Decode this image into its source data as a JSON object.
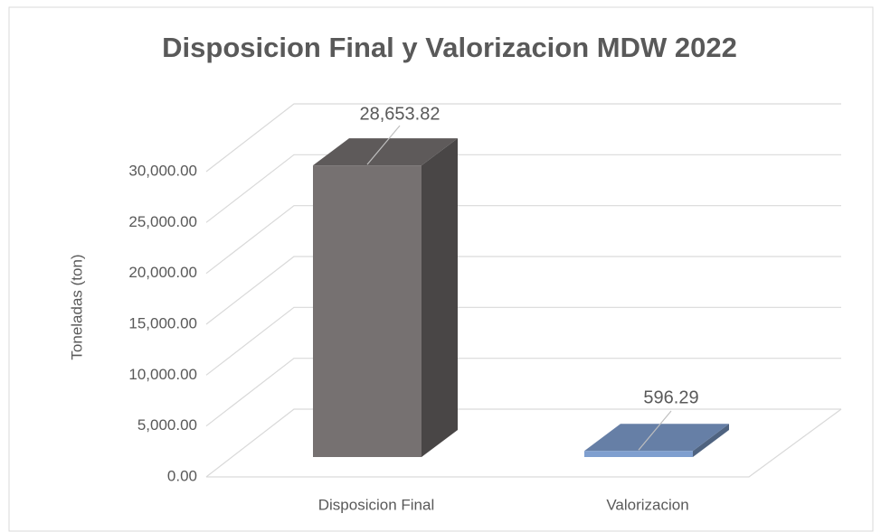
{
  "chart_data": {
    "type": "bar3d",
    "title": "Disposicion Final y Valorizacion MDW 2022",
    "y_label": "Toneladas (ton)",
    "categories": [
      "Disposicion Final",
      "Valorizacion"
    ],
    "values": [
      28653.82,
      596.29
    ],
    "value_labels": [
      "28,653.82",
      "596.29"
    ],
    "colors": [
      "#767171",
      "#7f9fcf"
    ],
    "ylim": [
      0,
      30000
    ],
    "yticks": [
      {
        "value": 0,
        "label": "0.00"
      },
      {
        "value": 5000,
        "label": "5,000.00"
      },
      {
        "value": 10000,
        "label": "10,000.00"
      },
      {
        "value": 15000,
        "label": "15,000.00"
      },
      {
        "value": 20000,
        "label": "20,000.00"
      },
      {
        "value": 25000,
        "label": "25,000.00"
      },
      {
        "value": 30000,
        "label": "30,000.00"
      }
    ],
    "grid": true
  }
}
